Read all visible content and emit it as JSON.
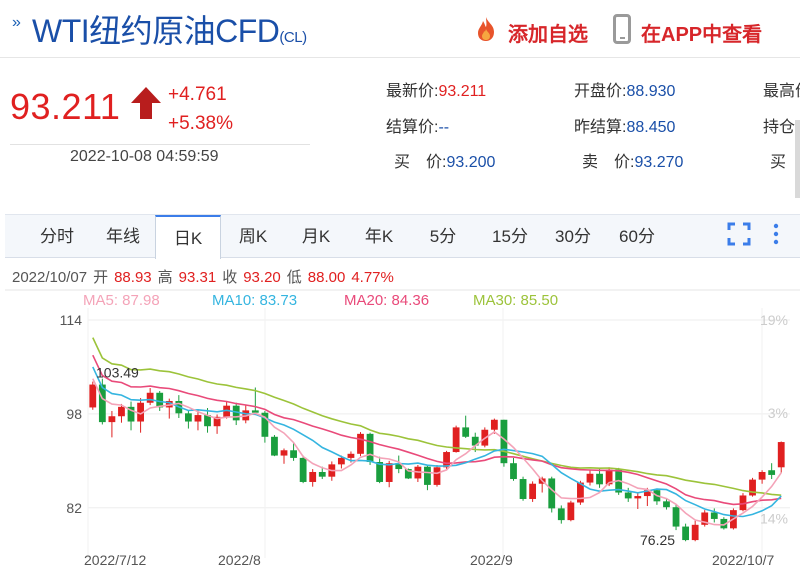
{
  "header": {
    "arrow": "»",
    "title": "WTI纽约原油CFD",
    "symbol": "(CL)",
    "add_favorite": "添加自选",
    "view_in_app": "在APP中查看"
  },
  "quote": {
    "price": "93.211",
    "change": "+4.761",
    "change_pct": "+5.38%",
    "time": "2022-10-08 04:59:59",
    "fields": {
      "latest_label": "最新价:",
      "latest_value": "93.211",
      "open_label": "开盘价:",
      "open_value": "88.930",
      "high_label": "最高价",
      "settle_label": "结算价:",
      "settle_value": "--",
      "prev_settle_label": "昨结算:",
      "prev_settle_value": "88.450",
      "oi_label": "持仓",
      "bid_label": "买　价:",
      "bid_value": "93.200",
      "ask_label": "卖　价:",
      "ask_value": "93.270",
      "bid_vol_label": "买　量"
    }
  },
  "tabs": [
    "分时",
    "年线",
    "日K",
    "周K",
    "月K",
    "年K",
    "5分",
    "15分",
    "30分",
    "60分"
  ],
  "active_tab": "日K",
  "icons": {
    "fullscreen": "fullscreen-icon",
    "more": "more-vertical-icon",
    "favorite": "flame-icon",
    "app": "phone-icon",
    "change": "up-arrow-icon"
  },
  "colors": {
    "up": "#e02020",
    "down": "#1a9e3e",
    "ma5": "#f4a3b8",
    "ma10": "#35b5e0",
    "ma20": "#e94a7a",
    "ma30": "#9cc33a",
    "brand": "#1a4fa8"
  },
  "chart_data": {
    "type": "candlestick",
    "info": {
      "date": "2022/10/07",
      "open_label": "开",
      "open": "88.93",
      "high_label": "高",
      "high": "93.31",
      "close_label": "收",
      "close": "93.20",
      "low_label": "低",
      "low": "88.00",
      "pct": "4.77%"
    },
    "ma": [
      {
        "name": "MA5",
        "value": "87.98",
        "color": "#f4a3b8"
      },
      {
        "name": "MA10",
        "value": "83.73",
        "color": "#35b5e0"
      },
      {
        "name": "MA20",
        "value": "84.36",
        "color": "#e94a7a"
      },
      {
        "name": "MA30",
        "value": "85.50",
        "color": "#9cc33a"
      }
    ],
    "y_ticks": [
      "114",
      "98",
      "82"
    ],
    "pct_ticks": [
      "19%",
      "3%",
      "14%"
    ],
    "x_ticks": [
      "2022/7/12",
      "2022/8",
      "2022/9",
      "2022/10/7"
    ],
    "annotations": {
      "high_label": "103.49",
      "low_label": "76.25"
    },
    "y_range": [
      76,
      114
    ],
    "candles": [
      [
        99.1,
        103.5,
        98.7,
        103.0
      ],
      [
        103.0,
        104.0,
        96.2,
        96.6
      ],
      [
        96.6,
        98.5,
        94.0,
        97.6
      ],
      [
        97.6,
        99.7,
        96.5,
        99.2
      ],
      [
        99.2,
        100.1,
        95.2,
        96.7
      ],
      [
        96.7,
        100.7,
        94.8,
        99.9
      ],
      [
        99.9,
        102.4,
        99.5,
        101.6
      ],
      [
        101.6,
        101.9,
        98.5,
        99.1
      ],
      [
        99.1,
        100.6,
        97.2,
        100.2
      ],
      [
        100.2,
        101.2,
        97.3,
        98.1
      ],
      [
        98.1,
        98.5,
        95.5,
        96.7
      ],
      [
        96.7,
        98.8,
        95.2,
        97.8
      ],
      [
        97.8,
        99.0,
        94.8,
        95.9
      ],
      [
        95.9,
        97.9,
        94.6,
        97.5
      ],
      [
        97.5,
        100.2,
        97.2,
        99.4
      ],
      [
        99.4,
        99.9,
        96.1,
        96.9
      ],
      [
        96.9,
        99.6,
        96.4,
        98.6
      ],
      [
        98.6,
        102.5,
        97.8,
        98.2
      ],
      [
        98.2,
        98.5,
        93.1,
        94.1
      ],
      [
        94.1,
        94.4,
        90.8,
        90.9
      ],
      [
        90.9,
        92.1,
        89.5,
        91.8
      ],
      [
        91.8,
        93.0,
        90.0,
        90.5
      ],
      [
        90.5,
        90.9,
        86.2,
        86.4
      ],
      [
        86.4,
        88.6,
        85.6,
        88.1
      ],
      [
        88.1,
        89.0,
        86.9,
        87.3
      ],
      [
        87.3,
        89.9,
        86.6,
        89.4
      ],
      [
        89.4,
        90.9,
        88.7,
        90.5
      ],
      [
        90.5,
        91.6,
        89.7,
        91.2
      ],
      [
        91.2,
        94.9,
        90.8,
        94.6
      ],
      [
        94.6,
        94.8,
        89.3,
        89.8
      ],
      [
        89.8,
        90.7,
        86.2,
        86.4
      ],
      [
        86.4,
        90.0,
        85.5,
        89.6
      ],
      [
        89.6,
        90.9,
        87.9,
        88.6
      ],
      [
        88.6,
        88.7,
        86.9,
        87.0
      ],
      [
        87.0,
        89.3,
        86.4,
        89.0
      ],
      [
        89.0,
        89.3,
        85.0,
        85.9
      ],
      [
        85.9,
        89.3,
        85.6,
        88.9
      ],
      [
        88.9,
        91.7,
        88.6,
        91.5
      ],
      [
        91.5,
        96.0,
        91.4,
        95.7
      ],
      [
        95.7,
        97.7,
        93.9,
        94.1
      ],
      [
        94.1,
        94.8,
        91.5,
        92.6
      ],
      [
        92.6,
        95.7,
        92.3,
        95.3
      ],
      [
        95.3,
        97.2,
        94.6,
        97.0
      ],
      [
        97.0,
        97.0,
        89.0,
        89.6
      ],
      [
        89.6,
        90.5,
        86.6,
        86.9
      ],
      [
        86.9,
        87.3,
        83.2,
        83.5
      ],
      [
        83.5,
        86.5,
        83.0,
        86.1
      ],
      [
        86.1,
        87.3,
        84.6,
        87.0
      ],
      [
        87.0,
        87.3,
        81.2,
        81.9
      ],
      [
        81.9,
        82.4,
        79.3,
        79.9
      ],
      [
        79.9,
        83.2,
        79.7,
        82.9
      ],
      [
        82.9,
        86.6,
        82.5,
        86.3
      ],
      [
        86.3,
        88.4,
        85.8,
        87.8
      ],
      [
        87.8,
        88.6,
        85.4,
        86.0
      ],
      [
        86.0,
        88.9,
        85.7,
        88.5
      ],
      [
        88.5,
        88.8,
        84.2,
        84.6
      ],
      [
        84.6,
        85.4,
        83.0,
        83.6
      ],
      [
        83.6,
        84.5,
        81.8,
        84.0
      ],
      [
        84.0,
        85.4,
        82.3,
        85.0
      ],
      [
        85.0,
        85.3,
        82.5,
        83.1
      ],
      [
        83.1,
        83.6,
        81.7,
        82.1
      ],
      [
        82.1,
        82.6,
        78.2,
        78.8
      ],
      [
        78.8,
        79.3,
        76.3,
        76.5
      ],
      [
        76.5,
        79.8,
        76.3,
        79.1
      ],
      [
        79.1,
        81.6,
        78.8,
        81.2
      ],
      [
        81.2,
        81.9,
        79.5,
        80.1
      ],
      [
        80.1,
        80.4,
        78.3,
        78.5
      ],
      [
        78.5,
        81.9,
        78.3,
        81.6
      ],
      [
        81.6,
        84.5,
        81.4,
        84.1
      ],
      [
        84.1,
        87.1,
        83.9,
        86.8
      ],
      [
        86.8,
        88.4,
        86.1,
        88.1
      ],
      [
        88.4,
        89.6,
        86.9,
        87.6
      ],
      [
        88.9,
        93.3,
        88.0,
        93.2
      ]
    ]
  }
}
